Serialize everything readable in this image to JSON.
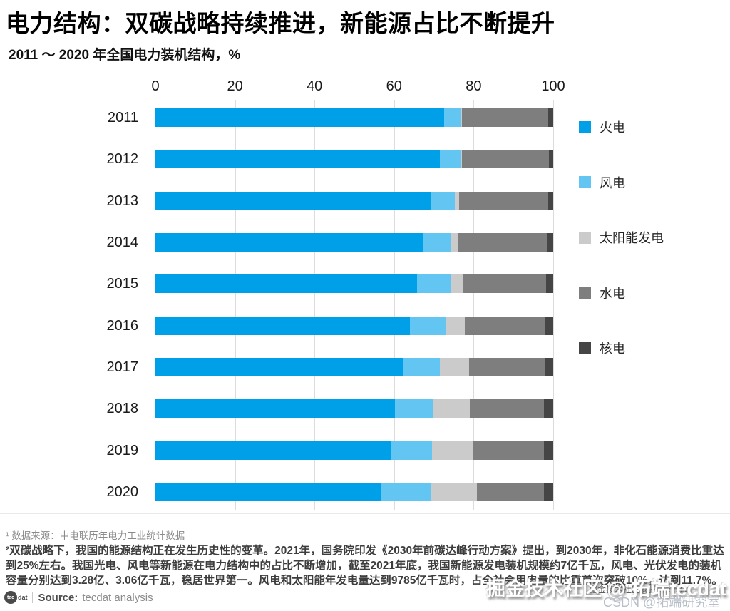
{
  "header": {
    "title": "电力结构：双碳战略持续推进，新能源占比不断提升",
    "subtitle": "2011 ～ 2020 年全国电力装机结构，%"
  },
  "chart_data": {
    "type": "bar",
    "orientation": "horizontal",
    "stacked": true,
    "title": "2011 ～ 2020 年全国电力装机结构，%",
    "xlabel": "",
    "ylabel": "",
    "xlim": [
      0,
      100
    ],
    "x_ticks": [
      0,
      20,
      40,
      60,
      80,
      100
    ],
    "grid": "vertical",
    "legend_position": "right",
    "categories": [
      "2011",
      "2012",
      "2013",
      "2014",
      "2015",
      "2016",
      "2017",
      "2018",
      "2019",
      "2020"
    ],
    "series": [
      {
        "name": "火电",
        "key": "thermal",
        "color": "#00A0E8",
        "values": [
          72.5,
          71.5,
          69.1,
          67.4,
          65.7,
          64.0,
          62.2,
          60.2,
          59.2,
          56.6
        ]
      },
      {
        "name": "风电",
        "key": "wind",
        "color": "#63C5F1",
        "values": [
          4.3,
          5.3,
          6.1,
          7.0,
          8.6,
          9.0,
          9.3,
          9.7,
          10.4,
          12.8
        ]
      },
      {
        "name": "太阳能发电",
        "key": "solar",
        "color": "#CBCBCB",
        "values": [
          0.2,
          0.3,
          1.2,
          1.8,
          2.9,
          4.7,
          7.3,
          9.2,
          10.2,
          11.5
        ]
      },
      {
        "name": "水电",
        "key": "hydro",
        "color": "#7E7E7E",
        "values": [
          21.8,
          21.8,
          22.4,
          22.3,
          21.0,
          20.3,
          19.2,
          18.5,
          17.8,
          16.8
        ]
      },
      {
        "name": "核电",
        "key": "nuclear",
        "color": "#454545",
        "values": [
          1.2,
          1.1,
          1.2,
          1.5,
          1.8,
          2.0,
          2.0,
          2.4,
          2.4,
          2.3
        ]
      }
    ]
  },
  "footnotes": {
    "note1": "¹ 数据来源：中电联历年电力工业统计数据",
    "note2": "²双碳战略下，我国的能源结构正在发生历史性的变革。2021年，国务院印发《2030年前碳达峰行动方案》提出，到2030年，非化石能源消费比重达到25%左右。我国光电、风电等新能源在电力结构中的占比不断增加，截至2021年底，我国新能源发电装机规模约7亿千瓦，风电、光伏发电的装机容量分别达到3.28亿、3.06亿千瓦，稳居世界第一。风电和太阳能年发电量达到9785亿千瓦时，占全社会用电量的比重首次突破10%，达到11.7%。"
  },
  "source": {
    "logo_tec": "tec",
    "logo_dat": "dat",
    "label": "Source:",
    "text": "tecdat analysis"
  },
  "watermarks": {
    "large": "掘金技术社区 @ 拓端tecdat",
    "small": "CSDN @拓端研究室",
    "tiny": "掘金技术社区@拓端tecdat"
  }
}
